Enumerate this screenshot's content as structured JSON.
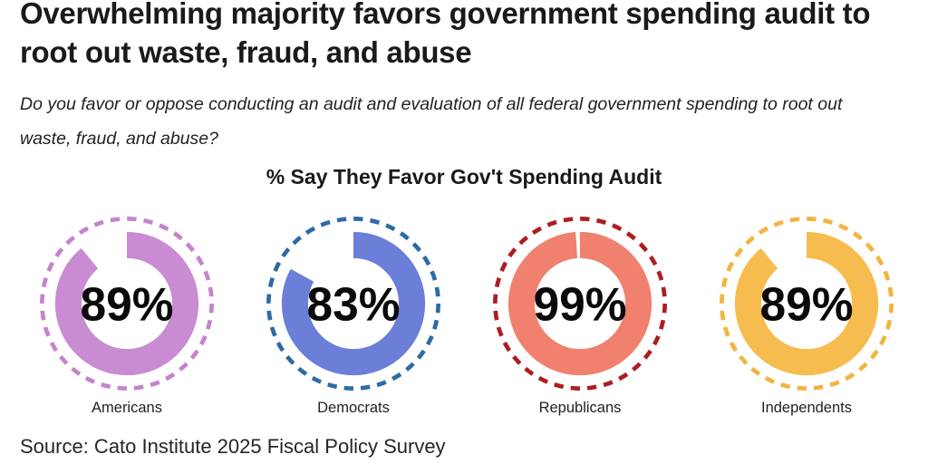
{
  "header": {
    "title": "Overwhelming majority favors government spending audit to root out waste, fraud, and abuse",
    "subtitle": "Do you favor or oppose conducting an audit and evaluation of all federal government spending to root out waste, fraud, and abuse?"
  },
  "chart_data": {
    "type": "donut",
    "title": "% Say They Favor Gov't Spending Audit",
    "unit": "%",
    "categories": [
      "Americans",
      "Democrats",
      "Republicans",
      "Independents"
    ],
    "values": [
      89,
      83,
      99,
      89
    ],
    "legend_position": "none",
    "groups": [
      {
        "label": "Americans",
        "value": 89,
        "display_value": "89%",
        "fill_color": "#C98BD2",
        "ring_color": "#C583CE"
      },
      {
        "label": "Democrats",
        "value": 83,
        "display_value": "83%",
        "fill_color": "#6B7FD8",
        "ring_color": "#2D6BA4"
      },
      {
        "label": "Republicans",
        "value": 99,
        "display_value": "99%",
        "fill_color": "#F0816F",
        "ring_color": "#AC1E22"
      },
      {
        "label": "Independents",
        "value": 89,
        "display_value": "89%",
        "fill_color": "#F7BC4F",
        "ring_color": "#F2B440"
      }
    ]
  },
  "source": {
    "text": "Source: Cato Institute 2025 Fiscal Policy Survey"
  }
}
